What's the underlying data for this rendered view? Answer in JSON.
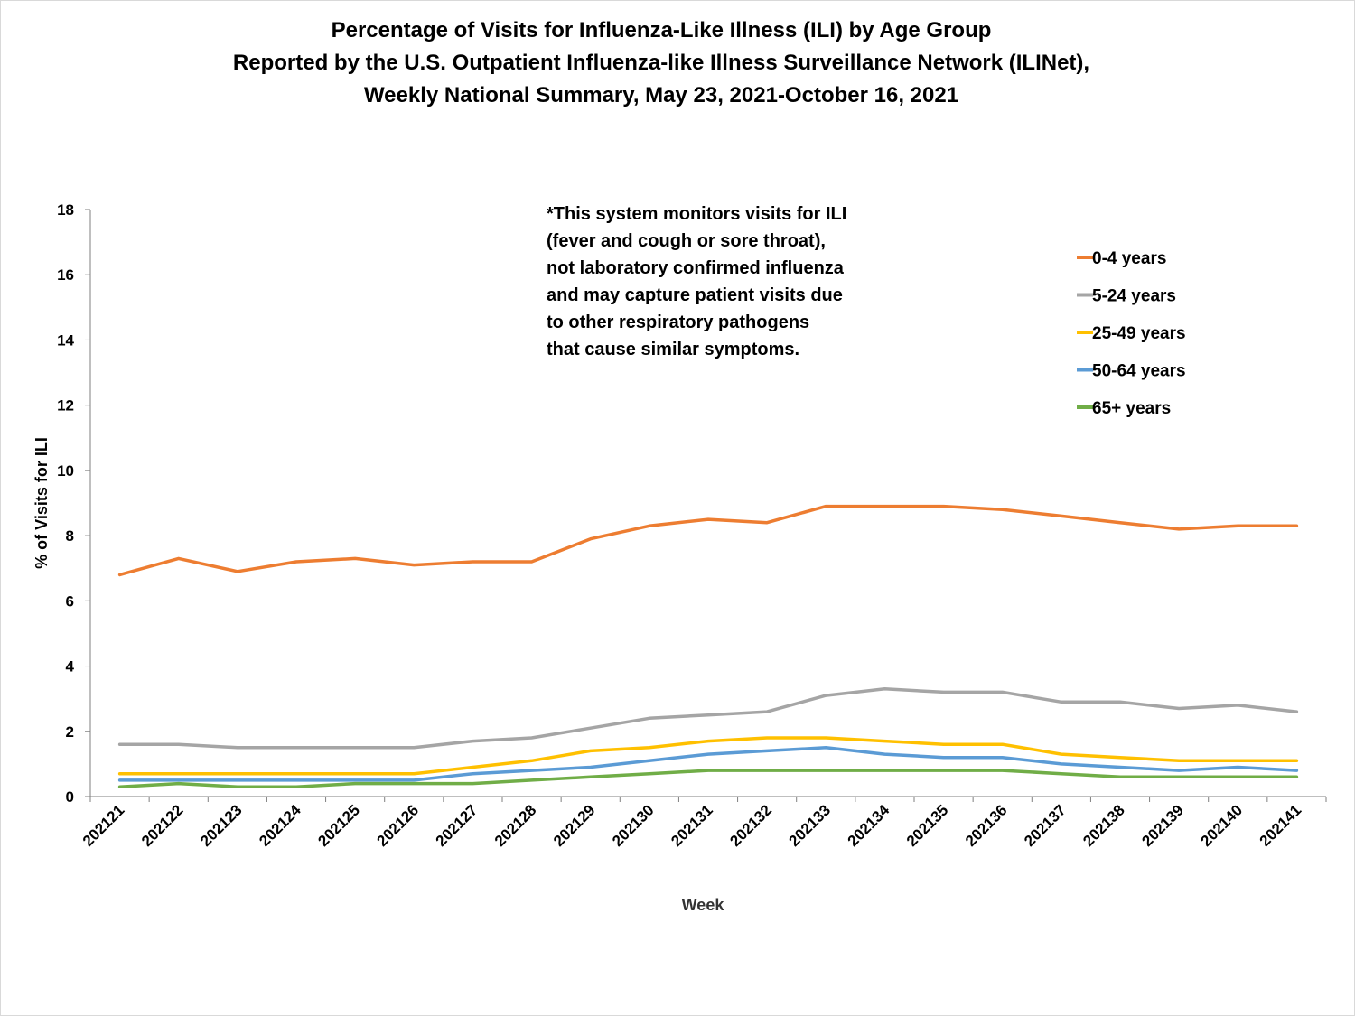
{
  "chart_data": {
    "type": "line",
    "title_lines": [
      "Percentage of Visits for Influenza-Like Illness (ILI) by Age Group",
      "Reported by the U.S. Outpatient Influenza-like Illness Surveillance Network (ILINet),",
      "Weekly National Summary, May 23, 2021-October 16, 2021"
    ],
    "xlabel": "Week",
    "ylabel": "% of Visits for ILI",
    "ylim": [
      0,
      18
    ],
    "yticks": [
      0,
      2,
      4,
      6,
      8,
      10,
      12,
      14,
      16,
      18
    ],
    "categories": [
      "202121",
      "202122",
      "202123",
      "202124",
      "202125",
      "202126",
      "202127",
      "202128",
      "202129",
      "202130",
      "202131",
      "202132",
      "202133",
      "202134",
      "202135",
      "202136",
      "202137",
      "202138",
      "202139",
      "202140",
      "202141"
    ],
    "series": [
      {
        "name": "0-4 years",
        "color": "#ed7d31",
        "values": [
          6.8,
          7.3,
          6.9,
          7.2,
          7.3,
          7.1,
          7.2,
          7.2,
          7.9,
          8.3,
          8.5,
          8.4,
          8.9,
          8.9,
          8.9,
          8.8,
          8.6,
          8.4,
          8.2,
          8.3,
          8.3
        ]
      },
      {
        "name": "5-24 years",
        "color": "#a5a5a5",
        "values": [
          1.6,
          1.6,
          1.5,
          1.5,
          1.5,
          1.5,
          1.7,
          1.8,
          2.1,
          2.4,
          2.5,
          2.6,
          3.1,
          3.3,
          3.2,
          3.2,
          2.9,
          2.9,
          2.7,
          2.8,
          2.6
        ]
      },
      {
        "name": "25-49 years",
        "color": "#ffc000",
        "values": [
          0.7,
          0.7,
          0.7,
          0.7,
          0.7,
          0.7,
          0.9,
          1.1,
          1.4,
          1.5,
          1.7,
          1.8,
          1.8,
          1.7,
          1.6,
          1.6,
          1.3,
          1.2,
          1.1,
          1.1,
          1.1
        ]
      },
      {
        "name": "50-64 years",
        "color": "#5b9bd5",
        "values": [
          0.5,
          0.5,
          0.5,
          0.5,
          0.5,
          0.5,
          0.7,
          0.8,
          0.9,
          1.1,
          1.3,
          1.4,
          1.5,
          1.3,
          1.2,
          1.2,
          1.0,
          0.9,
          0.8,
          0.9,
          0.8
        ]
      },
      {
        "name": "65+ years",
        "color": "#70ad47",
        "values": [
          0.3,
          0.4,
          0.3,
          0.3,
          0.4,
          0.4,
          0.4,
          0.5,
          0.6,
          0.7,
          0.8,
          0.8,
          0.8,
          0.8,
          0.8,
          0.8,
          0.7,
          0.6,
          0.6,
          0.6,
          0.6
        ]
      }
    ],
    "annotation_lines": [
      "*This system monitors visits for ILI",
      "(fever and cough or sore throat),",
      "not laboratory confirmed influenza",
      "and may capture patient visits due",
      "to other respiratory pathogens",
      "that cause similar symptoms."
    ],
    "legend_position": "top-right",
    "grid": false
  }
}
